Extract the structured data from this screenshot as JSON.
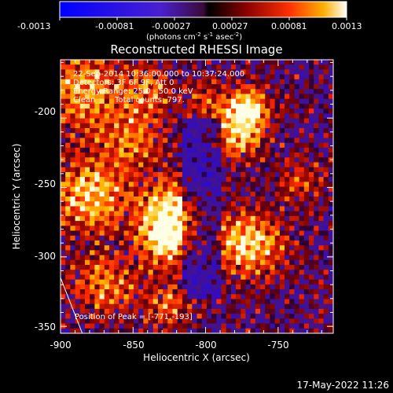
{
  "colorbar": {
    "ticks": [
      "-0.0013",
      "-0.00081",
      "-0.00027",
      "0.00027",
      "0.00081",
      "0.0013"
    ],
    "unit_parts": {
      "open": "(photons cm",
      "exp1": "-2",
      "s": " s",
      "exp2": "-1",
      "asec": " asec",
      "exp3": "-2",
      "close": ")"
    }
  },
  "title": "Reconstructed RHESSI Image",
  "info": {
    "line1": "22-Sep-2014 10:36:00.000 to 10:37:24.000",
    "line2": "Detectors: 3F 6F 9F, Att 0",
    "line3": "Energy Range: 25.0 - 50.0 keV",
    "line4_clean": "Clean",
    "line4_counts": "Total counts: 797.",
    "peak": "Position of Peak = [-771,-193]"
  },
  "axes": {
    "xlabel": "Heliocentric X (arcsec)",
    "ylabel": "Heliocentric Y (arcsec)",
    "xticks": [
      "-900",
      "-850",
      "-800",
      "-750"
    ],
    "yticks": [
      "-200",
      "-250",
      "-300",
      "-350"
    ]
  },
  "footer": {
    "date": "17-May-2022 11:26"
  },
  "chart_data": {
    "type": "heatmap",
    "title": "Reconstructed RHESSI Image",
    "xlabel": "Heliocentric X (arcsec)",
    "ylabel": "Heliocentric Y (arcsec)",
    "xlim": [
      -900,
      -712
    ],
    "ylim": [
      -355,
      -158
    ],
    "colorbar_range": [
      -0.0013,
      0.0013
    ],
    "peak": [
      -771,
      -193
    ],
    "limb_segment": [
      [
        -900,
        -315
      ],
      [
        -885,
        -355
      ]
    ],
    "hotspots": [
      {
        "x": -771,
        "y": -193,
        "amp": 1.0,
        "r": 10
      },
      {
        "x": -778,
        "y": -212,
        "amp": 0.8,
        "r": 12
      },
      {
        "x": -825,
        "y": -268,
        "amp": 1.0,
        "r": 15
      },
      {
        "x": -828,
        "y": -290,
        "amp": 0.8,
        "r": 12
      },
      {
        "x": -770,
        "y": -290,
        "amp": 0.9,
        "r": 16
      },
      {
        "x": -885,
        "y": -180,
        "amp": 0.7,
        "r": 20
      },
      {
        "x": -880,
        "y": -255,
        "amp": 0.85,
        "r": 18
      },
      {
        "x": -870,
        "y": -320,
        "amp": 0.6,
        "r": 15
      },
      {
        "x": -850,
        "y": -215,
        "amp": 0.55,
        "r": 15
      },
      {
        "x": -735,
        "y": -245,
        "amp": 0.35,
        "r": 12
      },
      {
        "x": -825,
        "y": -335,
        "amp": 0.5,
        "r": 12
      },
      {
        "x": -800,
        "y": -185,
        "amp": 0.4,
        "r": 10
      },
      {
        "x": -840,
        "y": -180,
        "amp": 0.5,
        "r": 12
      }
    ]
  }
}
